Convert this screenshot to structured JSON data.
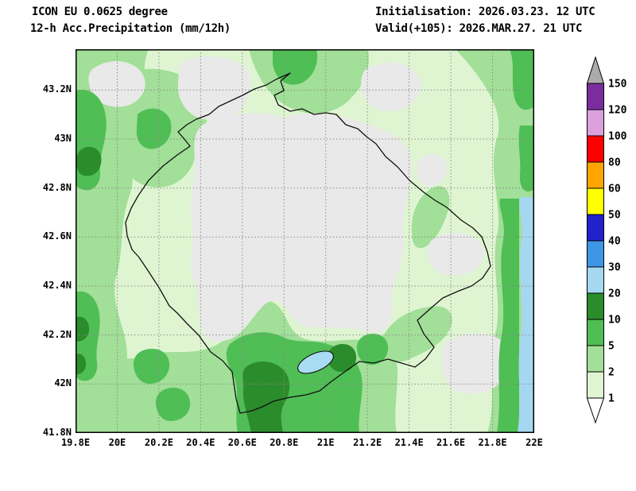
{
  "header": {
    "model": "ICON EU 0.0625 degree",
    "product": "12-h Acc.Precipitation (mm/12h)",
    "init_label": "Initialisation: 2026.03.23. 12 UTC",
    "valid_label": "Valid(+105): 2026.MAR.27. 21 UTC"
  },
  "axes": {
    "x_labels": [
      "19.8E",
      "20E",
      "20.2E",
      "20.4E",
      "20.6E",
      "20.8E",
      "21E",
      "21.2E",
      "21.4E",
      "21.6E",
      "21.8E",
      "22E"
    ],
    "y_labels": [
      "43.2N",
      "43N",
      "42.8N",
      "42.6N",
      "42.4N",
      "42.2N",
      "42N",
      "41.8N"
    ]
  },
  "colorbar": {
    "boundary_labels": [
      "150",
      "120",
      "100",
      "80",
      "60",
      "50",
      "40",
      "30",
      "20",
      "10",
      "5",
      "2",
      "1"
    ],
    "band_colors_bottom_to_top": [
      "#DFF5D2",
      "#A2DF98",
      "#4FBE55",
      "#2B8C2B",
      "#A5D8F0",
      "#3E96E6",
      "#2222CC",
      "#FFFF00",
      "#FFA500",
      "#FF0000",
      "#DDA0DD",
      "#7B2D9E"
    ],
    "over_color": "#ABABAB",
    "under_color": "#FFFFFF"
  },
  "palette": {
    "under": "#E9E9E9",
    "p1": "#DFF5D2",
    "p2": "#A2DF98",
    "p5": "#4FBE55",
    "p10": "#2B8C2B",
    "p20": "#A5D8F0",
    "lake": "#A8DCF2",
    "border": "#111111",
    "grid": "#8A8A8A"
  },
  "chart_data": {
    "type": "heatmap",
    "title": "ICON EU 0.0625 degree 12-h Acc.Precipitation (mm/12h)",
    "initialisation": "2026.03.23. 12 UTC",
    "valid": "2026.MAR.27. 21 UTC",
    "forecast_offset_hours": 105,
    "units": "mm/12h",
    "xlim": [
      19.8,
      22.0
    ],
    "ylim": [
      41.8,
      43.37
    ],
    "x_ticks": [
      19.8,
      20.0,
      20.2,
      20.4,
      20.6,
      20.8,
      21.0,
      21.2,
      21.4,
      21.6,
      21.8,
      22.0
    ],
    "y_ticks": [
      41.8,
      42.0,
      42.2,
      42.4,
      42.6,
      42.8,
      43.0,
      43.2
    ],
    "levels": [
      1,
      2,
      5,
      10,
      20,
      30,
      40,
      50,
      60,
      80,
      100,
      120,
      150
    ],
    "grid": "dotted",
    "legend_position": "right vertical colorbar",
    "field_summary": [
      {
        "region": "central interior of outlined country and several patches top/right",
        "value_mm": "<1"
      },
      {
        "region": "most of the remaining domain",
        "value_mm": "1-5"
      },
      {
        "region": "western edge, bottom-centre around lake, upper-left block, right-edge strip",
        "value_mm": "5-10"
      },
      {
        "region": "small cores on west edge and south-centre",
        "value_mm": "10-20"
      },
      {
        "region": "narrow strip along east map edge south of ~42.7N",
        "value_mm": "20-30"
      }
    ]
  }
}
